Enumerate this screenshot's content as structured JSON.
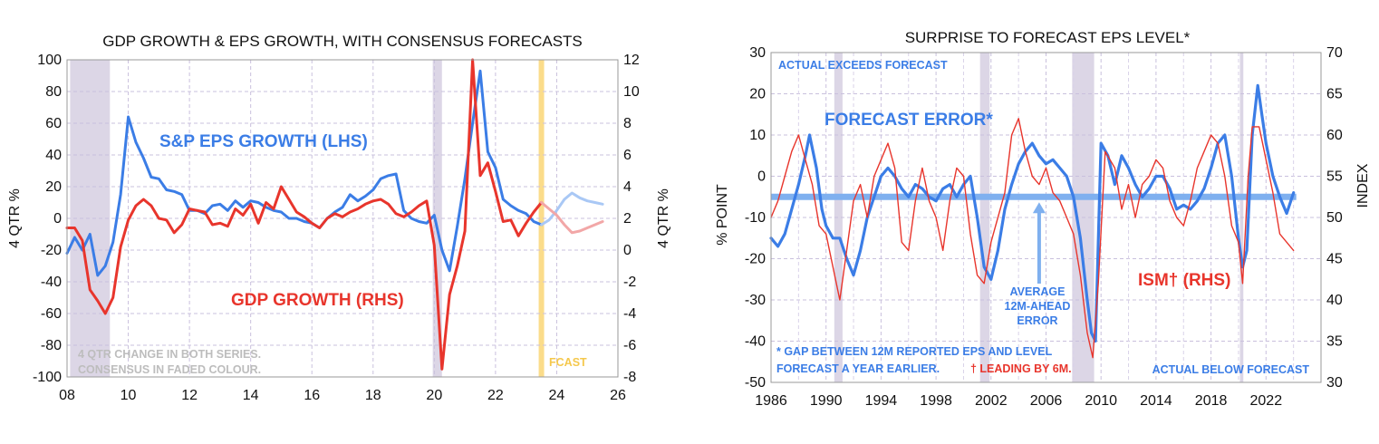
{
  "chart_data": [
    {
      "type": "line",
      "title": "GDP GROWTH & EPS GROWTH, WITH CONSENSUS FORECASTS",
      "x_range": [
        2008,
        2026
      ],
      "x_ticks": [
        2008,
        2010,
        2012,
        2014,
        2016,
        2018,
        2020,
        2022,
        2024,
        2026
      ],
      "x_tick_labels": [
        "08",
        "10",
        "12",
        "14",
        "16",
        "18",
        "20",
        "22",
        "24",
        "26"
      ],
      "ylim_left": [
        -100,
        100
      ],
      "y_ticks_left": [
        -100,
        -80,
        -60,
        -40,
        -20,
        0,
        20,
        40,
        60,
        80,
        100
      ],
      "ylabel_left": "4 QTR %",
      "ylim_right": [
        -8,
        12
      ],
      "y_ticks_right": [
        -8,
        -6,
        -4,
        -2,
        0,
        2,
        4,
        6,
        8,
        10,
        12
      ],
      "ylabel_right": "4 QTR %",
      "recessions": [
        [
          2008.1,
          2009.4
        ],
        [
          2019.95,
          2020.25
        ]
      ],
      "forecast_start": 2023.5,
      "labels": {
        "eps": "S&P EPS GROWTH (LHS)",
        "gdp": "GDP GROWTH (RHS)",
        "note_line1": "4 QTR CHANGE IN BOTH SERIES.",
        "note_line2": "CONSENSUS IN FADED COLOUR.",
        "fcast": "FCAST"
      },
      "series": [
        {
          "name": "S&P EPS GROWTH (LHS)",
          "axis": "left",
          "color": "#3b7de6",
          "x": [
            2008.0,
            2008.25,
            2008.5,
            2008.75,
            2009.0,
            2009.25,
            2009.5,
            2009.75,
            2010.0,
            2010.25,
            2010.5,
            2010.75,
            2011.0,
            2011.25,
            2011.5,
            2011.75,
            2012.0,
            2012.25,
            2012.5,
            2012.75,
            2013.0,
            2013.25,
            2013.5,
            2013.75,
            2014.0,
            2014.25,
            2014.5,
            2014.75,
            2015.0,
            2015.25,
            2015.5,
            2015.75,
            2016.0,
            2016.25,
            2016.5,
            2016.75,
            2017.0,
            2017.25,
            2017.5,
            2017.75,
            2018.0,
            2018.25,
            2018.5,
            2018.75,
            2019.0,
            2019.25,
            2019.5,
            2019.75,
            2020.0,
            2020.25,
            2020.5,
            2020.75,
            2021.0,
            2021.25,
            2021.5,
            2021.75,
            2022.0,
            2022.25,
            2022.5,
            2022.75,
            2023.0,
            2023.25,
            2023.5
          ],
          "values": [
            -22,
            -12,
            -20,
            -10,
            -36,
            -30,
            -15,
            15,
            64,
            48,
            38,
            26,
            25,
            18,
            17,
            15,
            5,
            5,
            3,
            8,
            9,
            5,
            11,
            7,
            11,
            10,
            7,
            5,
            4,
            0,
            0,
            -2,
            -3,
            -6,
            0,
            4,
            7,
            15,
            11,
            14,
            18,
            25,
            27,
            28,
            5,
            0,
            -2,
            -3,
            2,
            -20,
            -33,
            -5,
            25,
            60,
            93,
            42,
            32,
            12,
            8,
            5,
            3,
            -2,
            -4
          ]
        },
        {
          "name": "GDP GROWTH (RHS)",
          "axis": "right",
          "color": "#e8352c",
          "x": [
            2008.0,
            2008.25,
            2008.5,
            2008.75,
            2009.0,
            2009.25,
            2009.5,
            2009.75,
            2010.0,
            2010.25,
            2010.5,
            2010.75,
            2011.0,
            2011.25,
            2011.5,
            2011.75,
            2012.0,
            2012.25,
            2012.5,
            2012.75,
            2013.0,
            2013.25,
            2013.5,
            2013.75,
            2014.0,
            2014.25,
            2014.5,
            2014.75,
            2015.0,
            2015.25,
            2015.5,
            2015.75,
            2016.0,
            2016.25,
            2016.5,
            2016.75,
            2017.0,
            2017.25,
            2017.5,
            2017.75,
            2018.0,
            2018.25,
            2018.5,
            2018.75,
            2019.0,
            2019.25,
            2019.5,
            2019.75,
            2020.0,
            2020.25,
            2020.5,
            2020.75,
            2021.0,
            2021.25,
            2021.5,
            2021.75,
            2022.0,
            2022.25,
            2022.5,
            2022.75,
            2023.0,
            2023.25,
            2023.5
          ],
          "values": [
            1.4,
            1.4,
            0.6,
            -2.5,
            -3.2,
            -4.0,
            -3.0,
            0.2,
            1.9,
            2.8,
            3.2,
            2.8,
            2.0,
            1.9,
            1.1,
            1.6,
            2.6,
            2.5,
            2.4,
            1.6,
            1.7,
            1.5,
            2.6,
            2.2,
            2.9,
            1.7,
            3.0,
            2.6,
            4.0,
            3.2,
            2.4,
            2.1,
            1.7,
            1.4,
            2.0,
            2.3,
            2.1,
            2.4,
            2.6,
            2.9,
            3.1,
            3.2,
            2.9,
            2.3,
            2.1,
            2.4,
            2.8,
            3.1,
            0.3,
            -7.5,
            -2.8,
            -1.0,
            1.2,
            12.0,
            4.7,
            5.5,
            3.7,
            1.8,
            1.9,
            0.9,
            1.7,
            2.4,
            3.0
          ]
        },
        {
          "name": "EPS consensus forecast",
          "axis": "left",
          "color": "#a9c8f5",
          "x": [
            2023.5,
            2023.75,
            2024.0,
            2024.25,
            2024.5,
            2024.75,
            2025.0,
            2025.25,
            2025.5
          ],
          "values": [
            -4,
            -1,
            5,
            12,
            16,
            13,
            11,
            10,
            9
          ]
        },
        {
          "name": "GDP consensus forecast",
          "axis": "right",
          "color": "#f2a7a7",
          "x": [
            2023.5,
            2023.75,
            2024.0,
            2024.25,
            2024.5,
            2024.75,
            2025.0,
            2025.25,
            2025.5
          ],
          "values": [
            3.0,
            2.6,
            2.2,
            1.6,
            1.1,
            1.2,
            1.4,
            1.6,
            1.8
          ]
        }
      ]
    },
    {
      "type": "line",
      "title": "SURPRISE TO FORECAST EPS LEVEL*",
      "x_range": [
        1986,
        2026
      ],
      "x_ticks": [
        1986,
        1990,
        1994,
        1998,
        2002,
        2006,
        2010,
        2014,
        2018,
        2022
      ],
      "x_tick_labels": [
        "1986",
        "1990",
        "1994",
        "1998",
        "2002",
        "2006",
        "2010",
        "2014",
        "2018",
        "2022"
      ],
      "ylim_left": [
        -50,
        30
      ],
      "y_ticks_left": [
        -50,
        -40,
        -30,
        -20,
        -10,
        0,
        10,
        20,
        30
      ],
      "ylabel_left": "% POINT",
      "ylim_right": [
        30,
        70
      ],
      "y_ticks_right": [
        30,
        35,
        40,
        45,
        50,
        55,
        60,
        65,
        70
      ],
      "ylabel_right": "INDEX",
      "recessions": [
        [
          1990.6,
          1991.2
        ],
        [
          2001.2,
          2001.9
        ],
        [
          2007.9,
          2009.5
        ],
        [
          2020.1,
          2020.35
        ]
      ],
      "average_error": -5,
      "labels": {
        "actual_exceeds": "ACTUAL EXCEEDS FORECAST",
        "forecast_error": "FORECAST ERROR*",
        "average_line1": "AVERAGE",
        "average_line2": "12M-AHEAD",
        "average_line3": "ERROR",
        "ism": "ISM† (RHS)",
        "footnote_line1": "* GAP BETWEEN 12M REPORTED EPS AND LEVEL",
        "footnote_line2": "FORECAST A YEAR EARLIER.",
        "footnote_leading": "† LEADING BY 6M.",
        "actual_below": "ACTUAL BELOW FORECAST"
      },
      "series": [
        {
          "name": "FORECAST ERROR*",
          "axis": "left",
          "color": "#3b7de6",
          "x": [
            1986,
            1986.5,
            1987,
            1987.5,
            1988,
            1988.5,
            1988.8,
            1989.3,
            1989.7,
            1990,
            1990.5,
            1991,
            1991.5,
            1992,
            1992.5,
            1993,
            1993.5,
            1994,
            1994.5,
            1995,
            1995.5,
            1996,
            1996.5,
            1997,
            1997.5,
            1998,
            1998.5,
            1999,
            1999.5,
            2000,
            2000.5,
            2001,
            2001.5,
            2002,
            2002.5,
            2003,
            2003.5,
            2004,
            2004.5,
            2005,
            2005.5,
            2006,
            2006.5,
            2007,
            2007.5,
            2008,
            2008.5,
            2009,
            2009.3,
            2009.6,
            2010,
            2010.5,
            2011,
            2011.5,
            2012,
            2012.5,
            2013,
            2013.5,
            2014,
            2014.5,
            2015,
            2015.5,
            2016,
            2016.5,
            2017,
            2017.5,
            2018,
            2018.5,
            2019,
            2019.5,
            2020,
            2020.3,
            2020.6,
            2021,
            2021.4,
            2021.7,
            2022,
            2022.5,
            2023,
            2023.5,
            2024
          ],
          "values": [
            -15,
            -17,
            -14,
            -8,
            -2,
            5,
            10,
            2,
            -8,
            -12,
            -15,
            -15,
            -20,
            -24,
            -18,
            -10,
            -5,
            0,
            2,
            0,
            -3,
            -5,
            -2,
            -3,
            -5,
            -6,
            -3,
            -2,
            -5,
            -2,
            0,
            -10,
            -22,
            -25,
            -18,
            -8,
            -2,
            3,
            6,
            8,
            5,
            3,
            4,
            2,
            0,
            -5,
            -15,
            -30,
            -38,
            -40,
            8,
            5,
            -2,
            5,
            2,
            -2,
            -5,
            -3,
            0,
            0,
            -3,
            -8,
            -7,
            -8,
            -6,
            -3,
            2,
            8,
            10,
            0,
            -15,
            -22,
            -18,
            10,
            22,
            15,
            8,
            0,
            -5,
            -9,
            -4
          ]
        },
        {
          "name": "ISM† (RHS)",
          "axis": "right",
          "color": "#e8352c",
          "x": [
            1986,
            1986.5,
            1987,
            1987.5,
            1988,
            1988.5,
            1989,
            1989.5,
            1990,
            1990.5,
            1991,
            1991.5,
            1992,
            1992.5,
            1993,
            1993.5,
            1994,
            1994.5,
            1995,
            1995.5,
            1996,
            1996.5,
            1997,
            1997.5,
            1998,
            1998.5,
            1999,
            1999.5,
            2000,
            2000.5,
            2001,
            2001.5,
            2002,
            2002.5,
            2003,
            2003.5,
            2004,
            2004.5,
            2005,
            2005.5,
            2006,
            2006.5,
            2007,
            2007.5,
            2008,
            2008.5,
            2009,
            2009.4,
            2009.8,
            2010.3,
            2011,
            2011.5,
            2012,
            2012.5,
            2013,
            2013.5,
            2014,
            2014.5,
            2015,
            2015.5,
            2016,
            2016.5,
            2017,
            2017.5,
            2018,
            2018.5,
            2019,
            2019.5,
            2020,
            2020.3,
            2020.7,
            2021,
            2021.5,
            2022,
            2022.5,
            2023,
            2023.5,
            2024
          ],
          "values": [
            50,
            52,
            55,
            58,
            60,
            57,
            54,
            49,
            48,
            44,
            40,
            46,
            52,
            54,
            50,
            55,
            57,
            59,
            56,
            47,
            46,
            52,
            56,
            52,
            50,
            46,
            52,
            56,
            55,
            48,
            43,
            42,
            47,
            50,
            53,
            60,
            62,
            58,
            55,
            54,
            56,
            53,
            52,
            50,
            48,
            43,
            36,
            33,
            42,
            58,
            56,
            51,
            54,
            50,
            54,
            55,
            57,
            56,
            52,
            50,
            49,
            52,
            56,
            58,
            60,
            59,
            55,
            49,
            47,
            42,
            55,
            61,
            61,
            57,
            53,
            48,
            47,
            46
          ]
        }
      ]
    }
  ]
}
